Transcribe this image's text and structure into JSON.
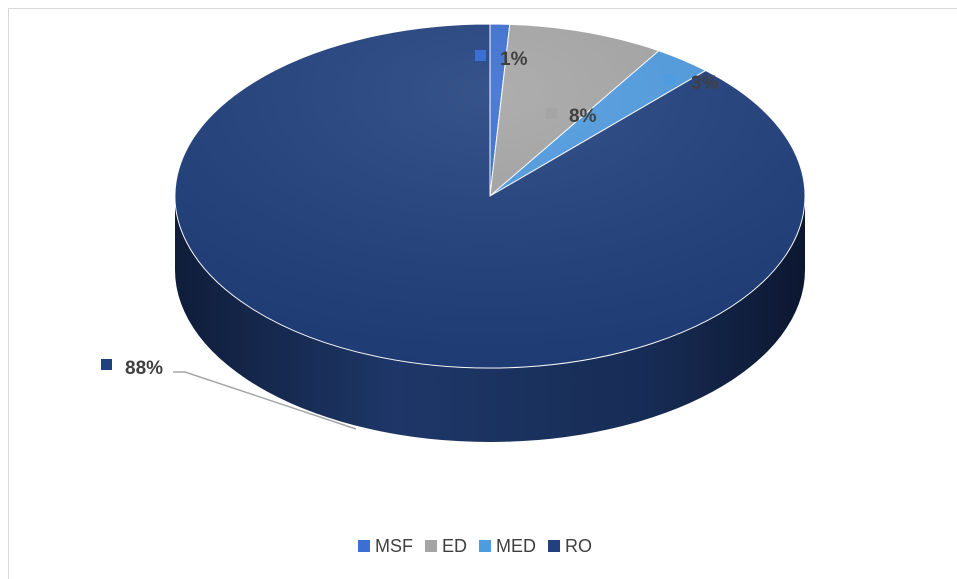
{
  "chart_data": {
    "type": "pie",
    "style": "3d",
    "title": "",
    "legend_position": "bottom",
    "series": [
      {
        "name": "MSF",
        "value": 1,
        "label": "1%",
        "color": "#3b6fd1"
      },
      {
        "name": "ED",
        "value": 8,
        "label": "8%",
        "color": "#a5a5a5"
      },
      {
        "name": "MED",
        "value": 3,
        "label": "3%",
        "color": "#4f9be0"
      },
      {
        "name": "RO",
        "value": 88,
        "label": "88%",
        "color": "#21407e"
      }
    ]
  }
}
